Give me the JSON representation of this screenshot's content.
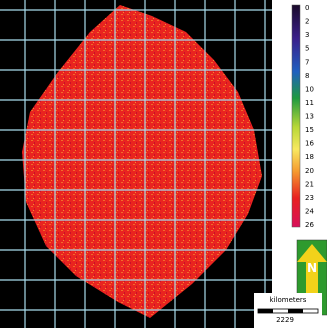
{
  "legend": {
    "labels": [
      "0",
      "2",
      "3",
      "5",
      "7",
      "8",
      "10",
      "11",
      "13",
      "15",
      "16",
      "18",
      "20",
      "21",
      "23",
      "24",
      "26"
    ]
  },
  "north_arrow": {
    "label": "N"
  },
  "scale_bar": {
    "unit": "kilometers",
    "value": "2229"
  }
}
